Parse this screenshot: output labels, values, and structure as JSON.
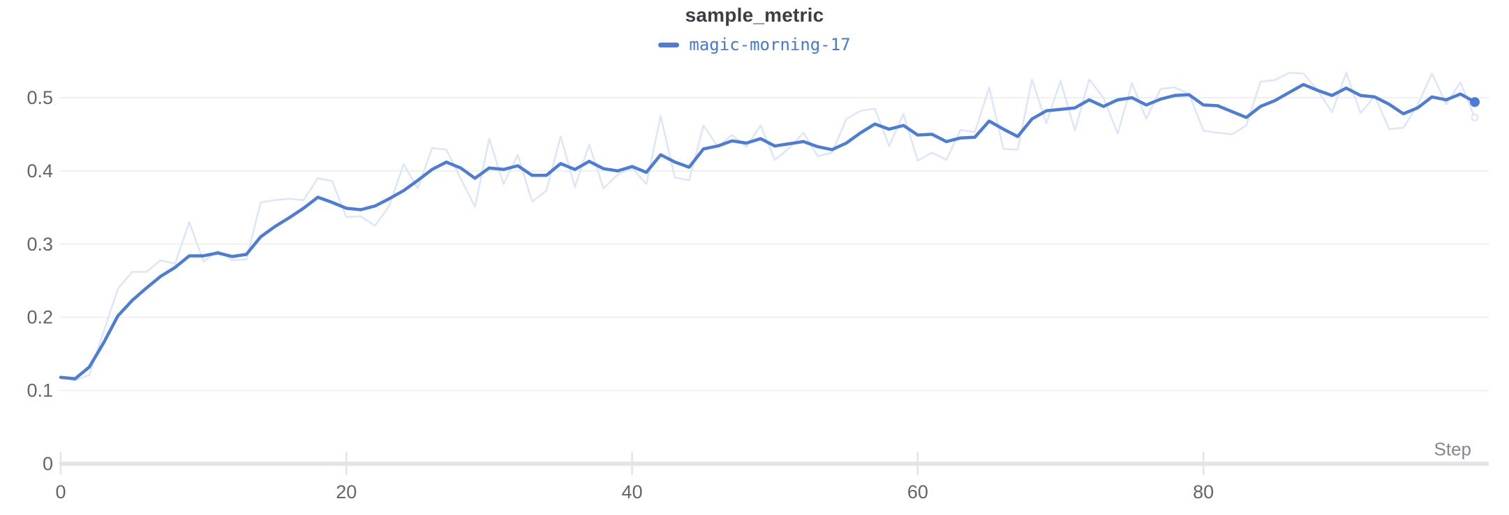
{
  "header": {
    "title": "sample_metric"
  },
  "legend": {
    "label": "magic-morning-17",
    "swatch_color": "#4d7cd6"
  },
  "axes": {
    "x": {
      "label": "Step",
      "tick_labels": [
        "0",
        "20",
        "40",
        "60",
        "80"
      ],
      "tick_values": [
        0,
        20,
        40,
        60,
        80
      ],
      "range": [
        0,
        99
      ]
    },
    "y": {
      "tick_labels": [
        "0",
        "0.1",
        "0.2",
        "0.3",
        "0.4",
        "0.5"
      ],
      "tick_values": [
        0,
        0.1,
        0.2,
        0.3,
        0.4,
        0.5
      ],
      "range": [
        0,
        0.55
      ]
    }
  },
  "colors": {
    "line_smoothed": "#4d7cd6",
    "line_raw": "#dce6f8",
    "gridline": "#ebebf0",
    "axis_band": "#e3e3e8",
    "tick_text": "#63646c",
    "title_text": "#3b3e45",
    "legend_text": "#4379d8",
    "step_label": "#85868e",
    "background": "#ffffff"
  },
  "chart_data": {
    "type": "line",
    "title": "sample_metric",
    "xlabel": "Step",
    "ylabel": "",
    "legend_position": "top-center",
    "grid": "horizontal",
    "x_range": [
      0,
      99
    ],
    "y_range": [
      0,
      0.55
    ],
    "x": [
      0,
      1,
      2,
      3,
      4,
      5,
      6,
      7,
      8,
      9,
      10,
      11,
      12,
      13,
      14,
      15,
      16,
      17,
      18,
      19,
      20,
      21,
      22,
      23,
      24,
      25,
      26,
      27,
      28,
      29,
      30,
      31,
      32,
      33,
      34,
      35,
      36,
      37,
      38,
      39,
      40,
      41,
      42,
      43,
      44,
      45,
      46,
      47,
      48,
      49,
      50,
      51,
      52,
      53,
      54,
      55,
      56,
      57,
      58,
      59,
      60,
      61,
      62,
      63,
      64,
      65,
      66,
      67,
      68,
      69,
      70,
      71,
      72,
      73,
      74,
      75,
      76,
      77,
      78,
      79,
      80,
      81,
      82,
      83,
      84,
      85,
      86,
      87,
      88,
      89,
      90,
      91,
      92,
      93,
      94,
      95,
      96,
      97,
      98,
      99
    ],
    "series": [
      {
        "name": "magic-morning-17 (raw, unsmoothed)",
        "role": "raw",
        "color": "#dce6f8",
        "values": [
          0.118,
          0.114,
          0.121,
          0.18,
          0.239,
          0.262,
          0.262,
          0.278,
          0.273,
          0.33,
          0.276,
          0.291,
          0.278,
          0.279,
          0.357,
          0.36,
          0.362,
          0.36,
          0.39,
          0.386,
          0.337,
          0.338,
          0.325,
          0.352,
          0.409,
          0.376,
          0.431,
          0.429,
          0.39,
          0.351,
          0.444,
          0.382,
          0.422,
          0.358,
          0.373,
          0.447,
          0.378,
          0.436,
          0.376,
          0.395,
          0.404,
          0.382,
          0.475,
          0.391,
          0.387,
          0.462,
          0.433,
          0.449,
          0.433,
          0.462,
          0.415,
          0.431,
          0.452,
          0.42,
          0.425,
          0.471,
          0.482,
          0.485,
          0.434,
          0.478,
          0.414,
          0.425,
          0.415,
          0.456,
          0.453,
          0.514,
          0.43,
          0.429,
          0.525,
          0.465,
          0.523,
          0.455,
          0.525,
          0.5,
          0.451,
          0.52,
          0.471,
          0.512,
          0.514,
          0.505,
          0.455,
          0.452,
          0.45,
          0.462,
          0.522,
          0.524,
          0.534,
          0.533,
          0.51,
          0.48,
          0.534,
          0.479,
          0.502,
          0.457,
          0.459,
          0.49,
          0.533,
          0.491,
          0.521,
          0.473
        ]
      },
      {
        "name": "magic-morning-17",
        "role": "smoothed",
        "color": "#4d7cd6",
        "values": [
          0.118,
          0.116,
          0.132,
          0.165,
          0.202,
          0.223,
          0.24,
          0.256,
          0.268,
          0.284,
          0.284,
          0.288,
          0.283,
          0.286,
          0.31,
          0.324,
          0.336,
          0.349,
          0.364,
          0.357,
          0.349,
          0.347,
          0.352,
          0.362,
          0.373,
          0.387,
          0.402,
          0.412,
          0.404,
          0.39,
          0.404,
          0.402,
          0.407,
          0.394,
          0.394,
          0.41,
          0.402,
          0.413,
          0.403,
          0.4,
          0.406,
          0.398,
          0.422,
          0.412,
          0.405,
          0.43,
          0.434,
          0.441,
          0.438,
          0.444,
          0.434,
          0.437,
          0.44,
          0.433,
          0.429,
          0.438,
          0.452,
          0.464,
          0.457,
          0.462,
          0.449,
          0.45,
          0.44,
          0.445,
          0.446,
          0.468,
          0.457,
          0.447,
          0.471,
          0.482,
          0.484,
          0.486,
          0.497,
          0.488,
          0.497,
          0.5,
          0.49,
          0.498,
          0.503,
          0.504,
          0.49,
          0.489,
          0.481,
          0.473,
          0.488,
          0.496,
          0.507,
          0.518,
          0.51,
          0.503,
          0.513,
          0.503,
          0.501,
          0.491,
          0.478,
          0.486,
          0.501,
          0.497,
          0.505,
          0.494
        ]
      }
    ]
  }
}
